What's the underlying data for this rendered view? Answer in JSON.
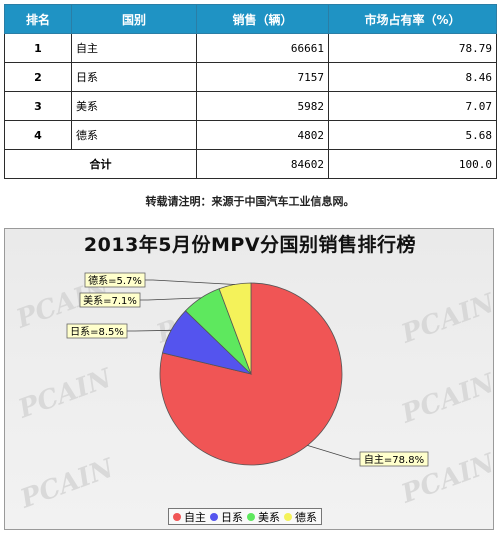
{
  "table": {
    "headers": [
      "排名",
      "国别",
      "销售（辆）",
      "市场占有率（%）"
    ],
    "rows": [
      {
        "rank": "1",
        "country": "自主",
        "sales": "66661",
        "share": "78.79"
      },
      {
        "rank": "2",
        "country": "日系",
        "sales": "7157",
        "share": "8.46"
      },
      {
        "rank": "3",
        "country": "美系",
        "sales": "5982",
        "share": "7.07"
      },
      {
        "rank": "4",
        "country": "德系",
        "sales": "4802",
        "share": "5.68"
      }
    ],
    "total": {
      "label": "合计",
      "sales": "84602",
      "share": "100.0"
    }
  },
  "note": "转载请注明：来源于中国汽车工业信息网。",
  "watermark": "PCAIN",
  "chart_data": {
    "type": "pie",
    "title": "2013年5月份MPV分国别销售排行榜",
    "slices": [
      {
        "name": "自主",
        "value": 78.8,
        "label": "自主=78.8%",
        "color": "#f05555"
      },
      {
        "name": "日系",
        "value": 8.5,
        "label": "日系=8.5%",
        "color": "#5454ee"
      },
      {
        "name": "美系",
        "value": 7.1,
        "label": "美系=7.1%",
        "color": "#5ee85e"
      },
      {
        "name": "德系",
        "value": 5.7,
        "label": "德系=5.7%",
        "color": "#f4f25a"
      }
    ],
    "legend_position": "bottom"
  }
}
